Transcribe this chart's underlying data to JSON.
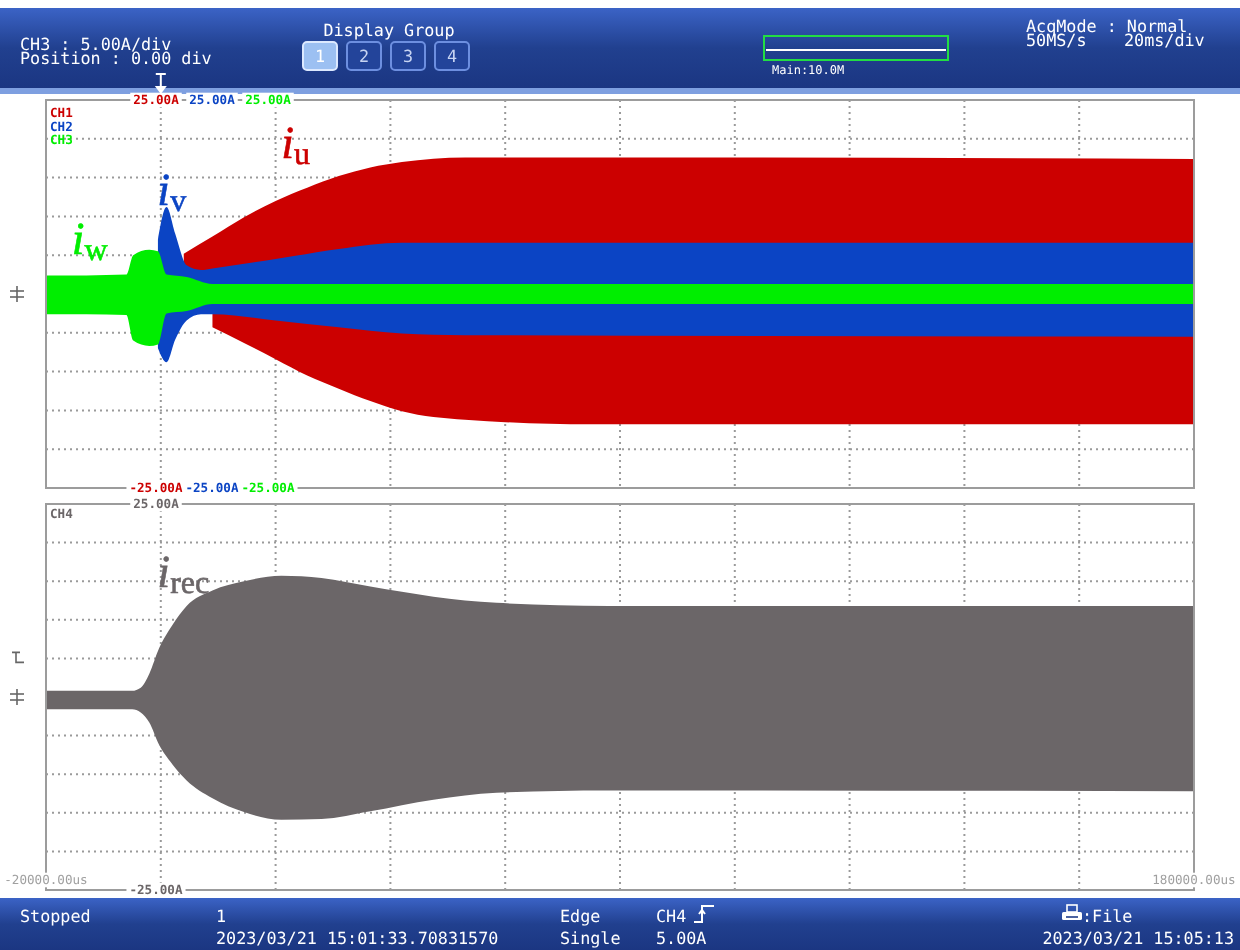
{
  "chart_data": [
    {
      "type": "area",
      "xlim": [
        -20000,
        180000
      ],
      "xticks": [
        {
          "value": -20000,
          "label": null
        },
        {
          "value": 0,
          "label": null
        },
        {
          "value": 20000,
          "label": null
        },
        {
          "value": 40000,
          "label": null
        },
        {
          "value": 60000,
          "label": null
        },
        {
          "value": 80000,
          "label": null
        },
        {
          "value": 100000,
          "label": null
        },
        {
          "value": 120000,
          "label": null
        },
        {
          "value": 140000,
          "label": null
        },
        {
          "value": 160000,
          "label": null
        },
        {
          "value": 180000,
          "label": null
        }
      ],
      "ylim": [
        -25,
        25
      ],
      "yticks": [
        {
          "value": -25,
          "label": "-25.00A"
        },
        {
          "value": -20,
          "label": null
        },
        {
          "value": -15,
          "label": null
        },
        {
          "value": -10,
          "label": null
        },
        {
          "value": -5,
          "label": null
        },
        {
          "value": 5,
          "label": null
        },
        {
          "value": 10,
          "label": null
        },
        {
          "value": 15,
          "label": null
        },
        {
          "value": 20,
          "label": null
        },
        {
          "value": 25,
          "label": "25.00A"
        }
      ],
      "y2lim": [
        -25,
        25
      ],
      "y2ticks": [
        {
          "value": -25,
          "label": "-25.00A"
        },
        {
          "value": 25,
          "label": "25.00A"
        }
      ],
      "y3lim": [
        -25,
        25
      ],
      "y3ticks": [
        {
          "value": -25,
          "label": "-25.00A"
        },
        {
          "value": 25,
          "label": "25.00A"
        }
      ],
      "grid": true,
      "tick_labels": "y",
      "annotations": [
        "CH3 : 5.00A/div",
        "Position : 0.00 div",
        "Display Group",
        "1",
        "2",
        "3",
        "4",
        "Main:10.0M",
        "AcqMode : Normal",
        "50MS/s",
        "20ms/div",
        "CH1",
        "CH2",
        "CH3"
      ],
      "series": [
        {
          "name": "i$_{u}$",
          "color": "#cc0000",
          "x": [
            4000,
            9000,
            14500,
            20000,
            25500,
            31000,
            36500,
            42000,
            53000,
            75000,
            180000
          ],
          "values": [
            5.2,
            7.4,
            9.9,
            12,
            13.7,
            15.2,
            16.3,
            17,
            17.6,
            17.6,
            17.4
          ]
        },
        {
          "color": "#cc0000",
          "x": [
            9000,
            14500,
            20000,
            25500,
            31000,
            36500,
            42000,
            53000,
            75000,
            180000
          ],
          "values": [
            -4.3,
            -6.3,
            -8.4,
            -10.5,
            -12.2,
            -13.8,
            -15.1,
            -16.2,
            -16.8,
            -16.8
          ]
        },
        {
          "name": "i$_{v}$",
          "color": "#0b44c4",
          "axis": "y2",
          "x": [
            -500,
            1000,
            2500,
            4500,
            7000,
            9000,
            20000,
            31000,
            42000,
            53000,
            180000
          ],
          "values": [
            7,
            11.2,
            7.8,
            3.7,
            3.1,
            3.3,
            4.5,
            5.8,
            6.6,
            6.6,
            6.6
          ]
        },
        {
          "color": "#0b44c4",
          "axis": "y2",
          "x": [
            -500,
            1000,
            2500,
            4500,
            7000,
            9000,
            20000,
            31000,
            42000,
            53000,
            180000
          ],
          "values": [
            -7,
            -8.8,
            -5.9,
            -3.4,
            -2.6,
            -2.6,
            -3.4,
            -4.3,
            -5.1,
            -5.3,
            -5.5
          ]
        },
        {
          "name": "i$_{w}$",
          "color": "#00ee00",
          "axis": "y3",
          "x": [
            -20000,
            -13000,
            -6000,
            -4800,
            -2000,
            -500,
            1000,
            4500,
            9000,
            180000
          ],
          "values": [
            2.4,
            2.4,
            2.5,
            5,
            5.7,
            5.5,
            2.5,
            2.2,
            1.3,
            1.3
          ]
        },
        {
          "color": "#00ee00",
          "axis": "y3",
          "x": [
            -20000,
            -13000,
            -6000,
            -4800,
            -2000,
            -500,
            1000,
            4500,
            9000,
            180000
          ],
          "values": [
            -2.6,
            -2.6,
            -2.7,
            -6,
            -6.7,
            -6.5,
            -2.5,
            -2.2,
            -1.3,
            -1.3
          ]
        }
      ]
    },
    {
      "type": "area",
      "xlim": [
        -20000,
        180000
      ],
      "xticks": [
        {
          "value": -20000,
          "label": "-20000.00us"
        },
        {
          "value": 0,
          "label": null
        },
        {
          "value": 20000,
          "label": null
        },
        {
          "value": 40000,
          "label": null
        },
        {
          "value": 60000,
          "label": null
        },
        {
          "value": 80000,
          "label": null
        },
        {
          "value": 100000,
          "label": null
        },
        {
          "value": 120000,
          "label": null
        },
        {
          "value": 140000,
          "label": null
        },
        {
          "value": 160000,
          "label": null
        },
        {
          "value": 180000,
          "label": "180000.00us"
        }
      ],
      "ylim": [
        -25,
        25
      ],
      "yticks": [
        {
          "value": -25,
          "label": "-25.00A"
        },
        {
          "value": -20,
          "label": null
        },
        {
          "value": -15,
          "label": null
        },
        {
          "value": -10,
          "label": null
        },
        {
          "value": -5,
          "label": null
        },
        {
          "value": 5,
          "label": null
        },
        {
          "value": 10,
          "label": null
        },
        {
          "value": 15,
          "label": null
        },
        {
          "value": 20,
          "label": null
        },
        {
          "value": 25,
          "label": "25.00A"
        }
      ],
      "ylabel": "CH4",
      "grid": true,
      "annotations": [
        "Stopped",
        "1",
        "2023/03/21 15:01:33.70831570",
        "Edge",
        "Single",
        "CH4",
        "5.00A",
        ":File",
        "2023/03/21 15:05:13"
      ],
      "series": [
        {
          "name": "i$_{rec}$",
          "color": "#6b6668",
          "x": [
            -20000,
            -5000,
            -3500,
            -2000,
            -300,
            2000,
            4500,
            9000,
            14500,
            21000,
            28000,
            36500,
            47500,
            58500,
            78000,
            180000
          ],
          "values": [
            0.8,
            0.8,
            1.2,
            3,
            6.3,
            9.3,
            11.8,
            13.8,
            15,
            15.7,
            15.4,
            14.3,
            13,
            12.2,
            11.8,
            11.8
          ]
        },
        {
          "color": "#6b6668",
          "x": [
            -20000,
            -5000,
            -3500,
            -2000,
            -300,
            2000,
            4500,
            9000,
            14500,
            21000,
            28000,
            36500,
            47500,
            58500,
            78000,
            180000
          ],
          "values": [
            -1.6,
            -1.6,
            -2,
            -3.3,
            -6.2,
            -8.7,
            -10.8,
            -13.1,
            -14.9,
            -15.9,
            -15.8,
            -14.8,
            -13.3,
            -12.4,
            -12.1,
            -12.2
          ]
        }
      ]
    }
  ]
}
